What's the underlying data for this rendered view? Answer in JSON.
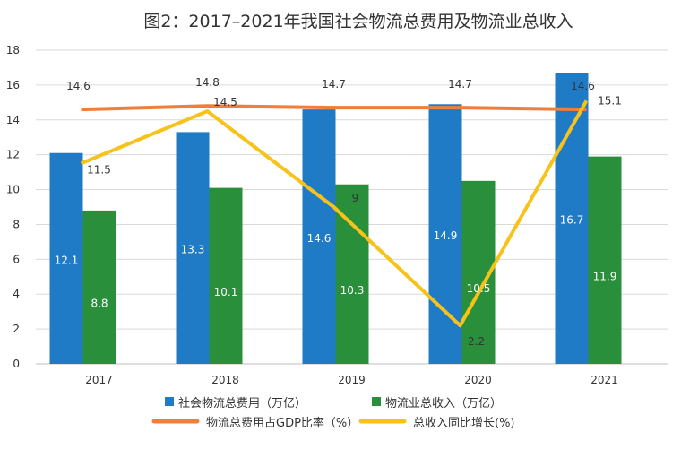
{
  "chart_data": {
    "type": "bar+line",
    "title": "图2：2017–2021年我国社会物流总费用及物流业总收入",
    "categories": [
      "2017",
      "2018",
      "2019",
      "2020",
      "2021"
    ],
    "ylim": [
      0,
      18
    ],
    "yticks": [
      0,
      2,
      4,
      6,
      8,
      10,
      12,
      14,
      16,
      18
    ],
    "grid": true,
    "legend_position": "bottom",
    "series": [
      {
        "name": "社会物流总费用（万亿）",
        "kind": "bar",
        "color": "#1f7bc6",
        "label_color": "#ffffff",
        "values": [
          12.1,
          13.3,
          14.6,
          14.9,
          16.7
        ]
      },
      {
        "name": "物流业总收入（万亿）",
        "kind": "bar",
        "color": "#2a8f3b",
        "label_color": "#ffffff",
        "values": [
          8.8,
          10.1,
          10.3,
          10.5,
          11.9
        ]
      },
      {
        "name": "物流总费用占GDP比率（%）",
        "kind": "line",
        "color": "#f07f3c",
        "label_color": "#333333",
        "values": [
          14.6,
          14.8,
          14.7,
          14.7,
          14.6
        ]
      },
      {
        "name": "总收入同比增长(%)",
        "kind": "line",
        "color": "#f7c21a",
        "label_color": "#333333",
        "values": [
          11.5,
          14.5,
          9.0,
          2.2,
          15.1
        ]
      }
    ]
  }
}
